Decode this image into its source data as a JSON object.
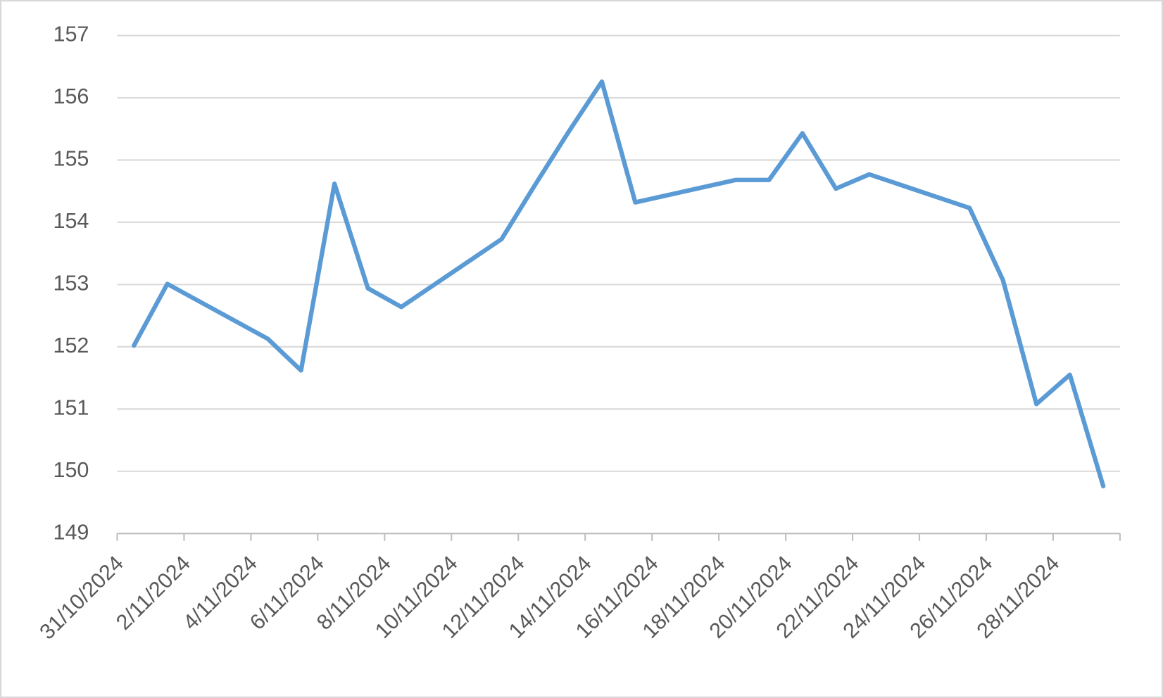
{
  "chart_data": {
    "type": "line",
    "x": [
      "31/10/2024",
      "1/11/2024",
      "4/11/2024",
      "5/11/2024",
      "6/11/2024",
      "7/11/2024",
      "8/11/2024",
      "11/11/2024",
      "12/11/2024",
      "13/11/2024",
      "14/11/2024",
      "15/11/2024",
      "18/11/2024",
      "19/11/2024",
      "20/11/2024",
      "21/11/2024",
      "22/11/2024",
      "25/11/2024",
      "26/11/2024",
      "27/11/2024",
      "28/11/2024",
      "29/11/2024"
    ],
    "series": [
      {
        "color": "#5b9bd5",
        "values": [
          152.02,
          153.01,
          152.13,
          151.62,
          154.62,
          152.94,
          152.64,
          153.73,
          154.6,
          155.45,
          156.26,
          154.32,
          154.68,
          154.68,
          155.43,
          154.54,
          154.77,
          154.23,
          153.07,
          151.08,
          151.55,
          149.76
        ]
      }
    ],
    "xlim": [
      "31/10/2024",
      "30/11/2024"
    ],
    "xticks": [
      "31/10/2024",
      "2/11/2024",
      "4/11/2024",
      "6/11/2024",
      "8/11/2024",
      "10/11/2024",
      "12/11/2024",
      "14/11/2024",
      "16/11/2024",
      "18/11/2024",
      "20/11/2024",
      "22/11/2024",
      "24/11/2024",
      "26/11/2024",
      "28/11/2024"
    ],
    "ylim": [
      149,
      157
    ],
    "yticks": [
      149,
      150,
      151,
      152,
      153,
      154,
      155,
      156,
      157
    ],
    "grid": true
  }
}
